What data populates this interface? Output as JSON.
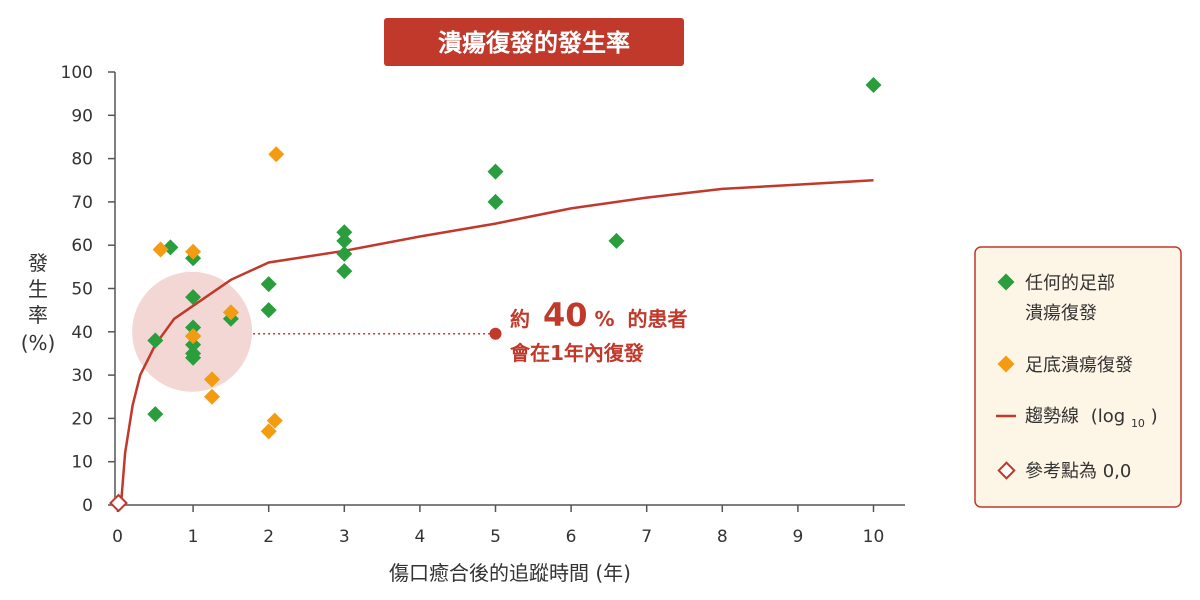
{
  "chart_data": {
    "type": "scatter",
    "title": "潰瘍復發的發生率",
    "xlabel": "傷口癒合後的追蹤時間 (年)",
    "ylabel": [
      "發",
      "生",
      "率",
      "(%)"
    ],
    "xlim": [
      0,
      10.5
    ],
    "ylim": [
      0,
      100
    ],
    "xticks": [
      0,
      1,
      2,
      3,
      4,
      5,
      6,
      7,
      8,
      9,
      10
    ],
    "yticks": [
      0,
      10,
      20,
      30,
      40,
      50,
      60,
      70,
      80,
      90,
      100
    ],
    "grid": false,
    "legend_position": "right",
    "series": [
      {
        "name_lines": [
          "任何的足部",
          "潰瘍復發"
        ],
        "marker": "diamond",
        "color": "#2a9d3c",
        "points": [
          [
            0.5,
            38
          ],
          [
            0.5,
            21
          ],
          [
            0.7,
            59.5
          ],
          [
            1,
            57
          ],
          [
            1,
            48
          ],
          [
            1,
            41
          ],
          [
            1,
            39
          ],
          [
            1,
            37
          ],
          [
            1,
            35
          ],
          [
            1,
            34
          ],
          [
            1.5,
            43
          ],
          [
            2,
            51
          ],
          [
            2,
            45
          ],
          [
            3,
            63
          ],
          [
            3,
            61
          ],
          [
            3,
            58
          ],
          [
            3,
            54
          ],
          [
            5,
            77
          ],
          [
            5,
            70
          ],
          [
            6.6,
            61
          ],
          [
            10,
            97
          ]
        ]
      },
      {
        "name_lines": [
          "足底潰瘍復發"
        ],
        "marker": "diamond",
        "color": "#f39c12",
        "points": [
          [
            0.57,
            59
          ],
          [
            1,
            58.5
          ],
          [
            1,
            39
          ],
          [
            1.25,
            29
          ],
          [
            1.25,
            25
          ],
          [
            1.5,
            44.5
          ],
          [
            2,
            17
          ],
          [
            2.08,
            19.5
          ],
          [
            2.1,
            81
          ]
        ]
      }
    ],
    "trendline": {
      "name": "趨勢線",
      "name_suffix": "(log",
      "name_sub": "10",
      "name_close": ")",
      "type": "log10",
      "color": "#c0392b",
      "points": [
        [
          0.05,
          1
        ],
        [
          0.1,
          12
        ],
        [
          0.2,
          23
        ],
        [
          0.3,
          30
        ],
        [
          0.5,
          37
        ],
        [
          0.75,
          43
        ],
        [
          1,
          46
        ],
        [
          1.5,
          52
        ],
        [
          2,
          56
        ],
        [
          3,
          58.7
        ],
        [
          4,
          62
        ],
        [
          5,
          65
        ],
        [
          6,
          68.5
        ],
        [
          7,
          71
        ],
        [
          8,
          73
        ],
        [
          9,
          74
        ],
        [
          10,
          75
        ]
      ]
    },
    "reference_point": {
      "name": "參考點為 0,0",
      "x": 0.05,
      "y": 1,
      "color": "#c0392b"
    },
    "annotation": {
      "prefix": "約",
      "value": "40",
      "unit": "%",
      "suffix": "的患者",
      "line2": "會在1年內復發",
      "highlight_x": 1,
      "highlight_y": 40,
      "target_x": 5,
      "target_y": 40,
      "color": "#c0392b",
      "highlight_color": "#f2d7d5"
    },
    "colors": {
      "title_bg": "#c0392b",
      "legend_bg": "#fdf5e6",
      "legend_border": "#c0392b",
      "axis": "#555555"
    }
  }
}
